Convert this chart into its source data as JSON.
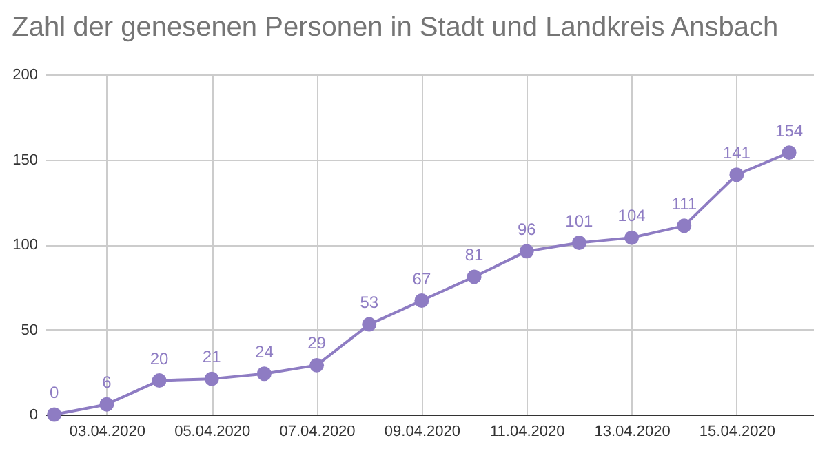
{
  "chart_data": {
    "type": "line",
    "title": "Zahl der genesenen Personen in Stadt und Landkreis Ansbach",
    "x": [
      "2020-04-02",
      "2020-04-03",
      "2020-04-04",
      "2020-04-05",
      "2020-04-06",
      "2020-04-07",
      "2020-04-08",
      "2020-04-09",
      "2020-04-10",
      "2020-04-11",
      "2020-04-12",
      "2020-04-13",
      "2020-04-14",
      "2020-04-15",
      "2020-04-16"
    ],
    "series": [
      {
        "color": "#8e7cc3",
        "values": [
          0,
          6,
          20,
          21,
          24,
          29,
          53,
          67,
          81,
          96,
          101,
          104,
          111,
          141,
          154
        ]
      }
    ],
    "xlim": [
      "2020-04-01T20:00",
      "2020-04-16T11:00"
    ],
    "xticks": [
      {
        "value": "2020-04-03",
        "label": "03.04.2020"
      },
      {
        "value": "2020-04-05",
        "label": "05.04.2020"
      },
      {
        "value": "2020-04-07",
        "label": "07.04.2020"
      },
      {
        "value": "2020-04-09",
        "label": "09.04.2020"
      },
      {
        "value": "2020-04-11",
        "label": "11.04.2020"
      },
      {
        "value": "2020-04-13",
        "label": "13.04.2020"
      },
      {
        "value": "2020-04-15",
        "label": "15.04.2020"
      }
    ],
    "ylim": [
      0,
      200
    ],
    "yticks": [
      0,
      50,
      100,
      150,
      200
    ],
    "grid": true,
    "marker": "circle",
    "line_style": "solid",
    "data_labels": true
  }
}
